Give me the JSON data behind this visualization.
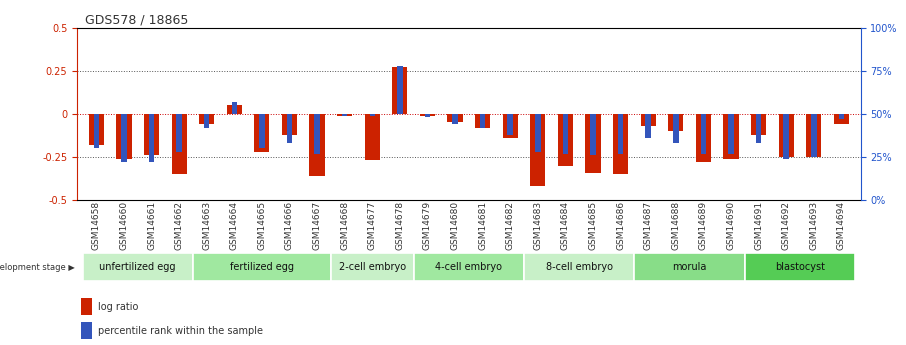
{
  "title": "GDS578 / 18865",
  "samples": [
    "GSM14658",
    "GSM14660",
    "GSM14661",
    "GSM14662",
    "GSM14663",
    "GSM14664",
    "GSM14665",
    "GSM14666",
    "GSM14667",
    "GSM14668",
    "GSM14677",
    "GSM14678",
    "GSM14679",
    "GSM14680",
    "GSM14681",
    "GSM14682",
    "GSM14683",
    "GSM14684",
    "GSM14685",
    "GSM14686",
    "GSM14687",
    "GSM14688",
    "GSM14689",
    "GSM14690",
    "GSM14691",
    "GSM14692",
    "GSM14693",
    "GSM14694"
  ],
  "log_ratio": [
    -0.18,
    -0.26,
    -0.24,
    -0.35,
    -0.06,
    0.05,
    -0.22,
    -0.12,
    -0.36,
    -0.01,
    -0.27,
    0.27,
    -0.01,
    -0.05,
    -0.08,
    -0.14,
    -0.42,
    -0.3,
    -0.34,
    -0.35,
    -0.07,
    -0.1,
    -0.28,
    -0.26,
    -0.12,
    -0.25,
    -0.25,
    -0.06
  ],
  "percentile": [
    30,
    22,
    22,
    28,
    42,
    57,
    30,
    33,
    27,
    49,
    49,
    78,
    48,
    44,
    42,
    38,
    28,
    27,
    26,
    27,
    36,
    33,
    27,
    27,
    33,
    24,
    25,
    47
  ],
  "stages": [
    {
      "label": "unfertilized egg",
      "start": 0,
      "end": 4,
      "color": "#c8f0c8"
    },
    {
      "label": "fertilized egg",
      "start": 4,
      "end": 9,
      "color": "#a0e8a0"
    },
    {
      "label": "2-cell embryo",
      "start": 9,
      "end": 12,
      "color": "#c8f0c8"
    },
    {
      "label": "4-cell embryo",
      "start": 12,
      "end": 16,
      "color": "#a0e8a0"
    },
    {
      "label": "8-cell embryo",
      "start": 16,
      "end": 20,
      "color": "#c8f0c8"
    },
    {
      "label": "morula",
      "start": 20,
      "end": 24,
      "color": "#88dd88"
    },
    {
      "label": "blastocyst",
      "start": 24,
      "end": 28,
      "color": "#55cc55"
    }
  ],
  "ylim_left": [
    -0.5,
    0.5
  ],
  "ylim_right": [
    0,
    100
  ],
  "bar_color_red": "#cc2200",
  "bar_color_blue": "#3355bb",
  "zero_line_color": "#cc0000",
  "dotted_line_color": "#555555",
  "bg_color": "#ffffff",
  "left_axis_color": "#cc2200",
  "right_axis_color": "#2255cc",
  "title_fontsize": 9,
  "tick_fontsize": 6.5,
  "stage_fontsize": 7,
  "legend_fontsize": 7
}
